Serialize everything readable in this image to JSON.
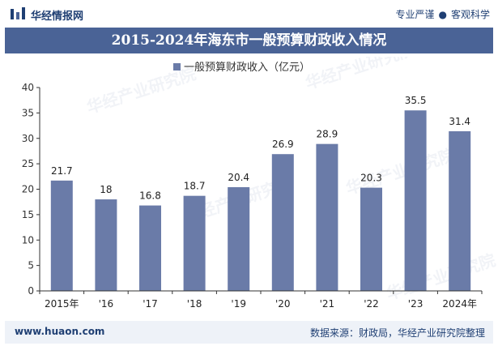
{
  "header": {
    "brand": "华经情报网",
    "slogan_left": "专业严谨",
    "slogan_right": "客观科学"
  },
  "title": "2015-2024年海东市一般预算财政收入情况",
  "legend_label": "一般预算财政收入（亿元）",
  "footer": {
    "site": "www.huaon.com",
    "source": "数据来源：财政局，华经产业研究院整理"
  },
  "watermark": "华经产业研究院",
  "colors": {
    "bar": "#6a7ba8",
    "title_bg": "#4a6396",
    "brand": "#1f3f73"
  },
  "chart_data": {
    "type": "bar",
    "categories": [
      "2015年",
      "'16",
      "'17",
      "'18",
      "'19",
      "'20",
      "'21",
      "'22",
      "'23",
      "2024年"
    ],
    "series": [
      {
        "name": "一般预算财政收入（亿元）",
        "values": [
          21.7,
          18,
          16.8,
          18.7,
          20.4,
          26.9,
          28.9,
          20.3,
          35.5,
          31.4
        ],
        "labels": [
          "21.7",
          "18",
          "16.8",
          "18.7",
          "20.4",
          "26.9",
          "28.9",
          "20.3",
          "35.5",
          "31.4"
        ]
      }
    ],
    "ylim": [
      0,
      40
    ],
    "yticks": [
      0,
      5,
      10,
      15,
      20,
      25,
      30,
      35,
      40
    ],
    "grid": false,
    "legend": "top-center"
  }
}
